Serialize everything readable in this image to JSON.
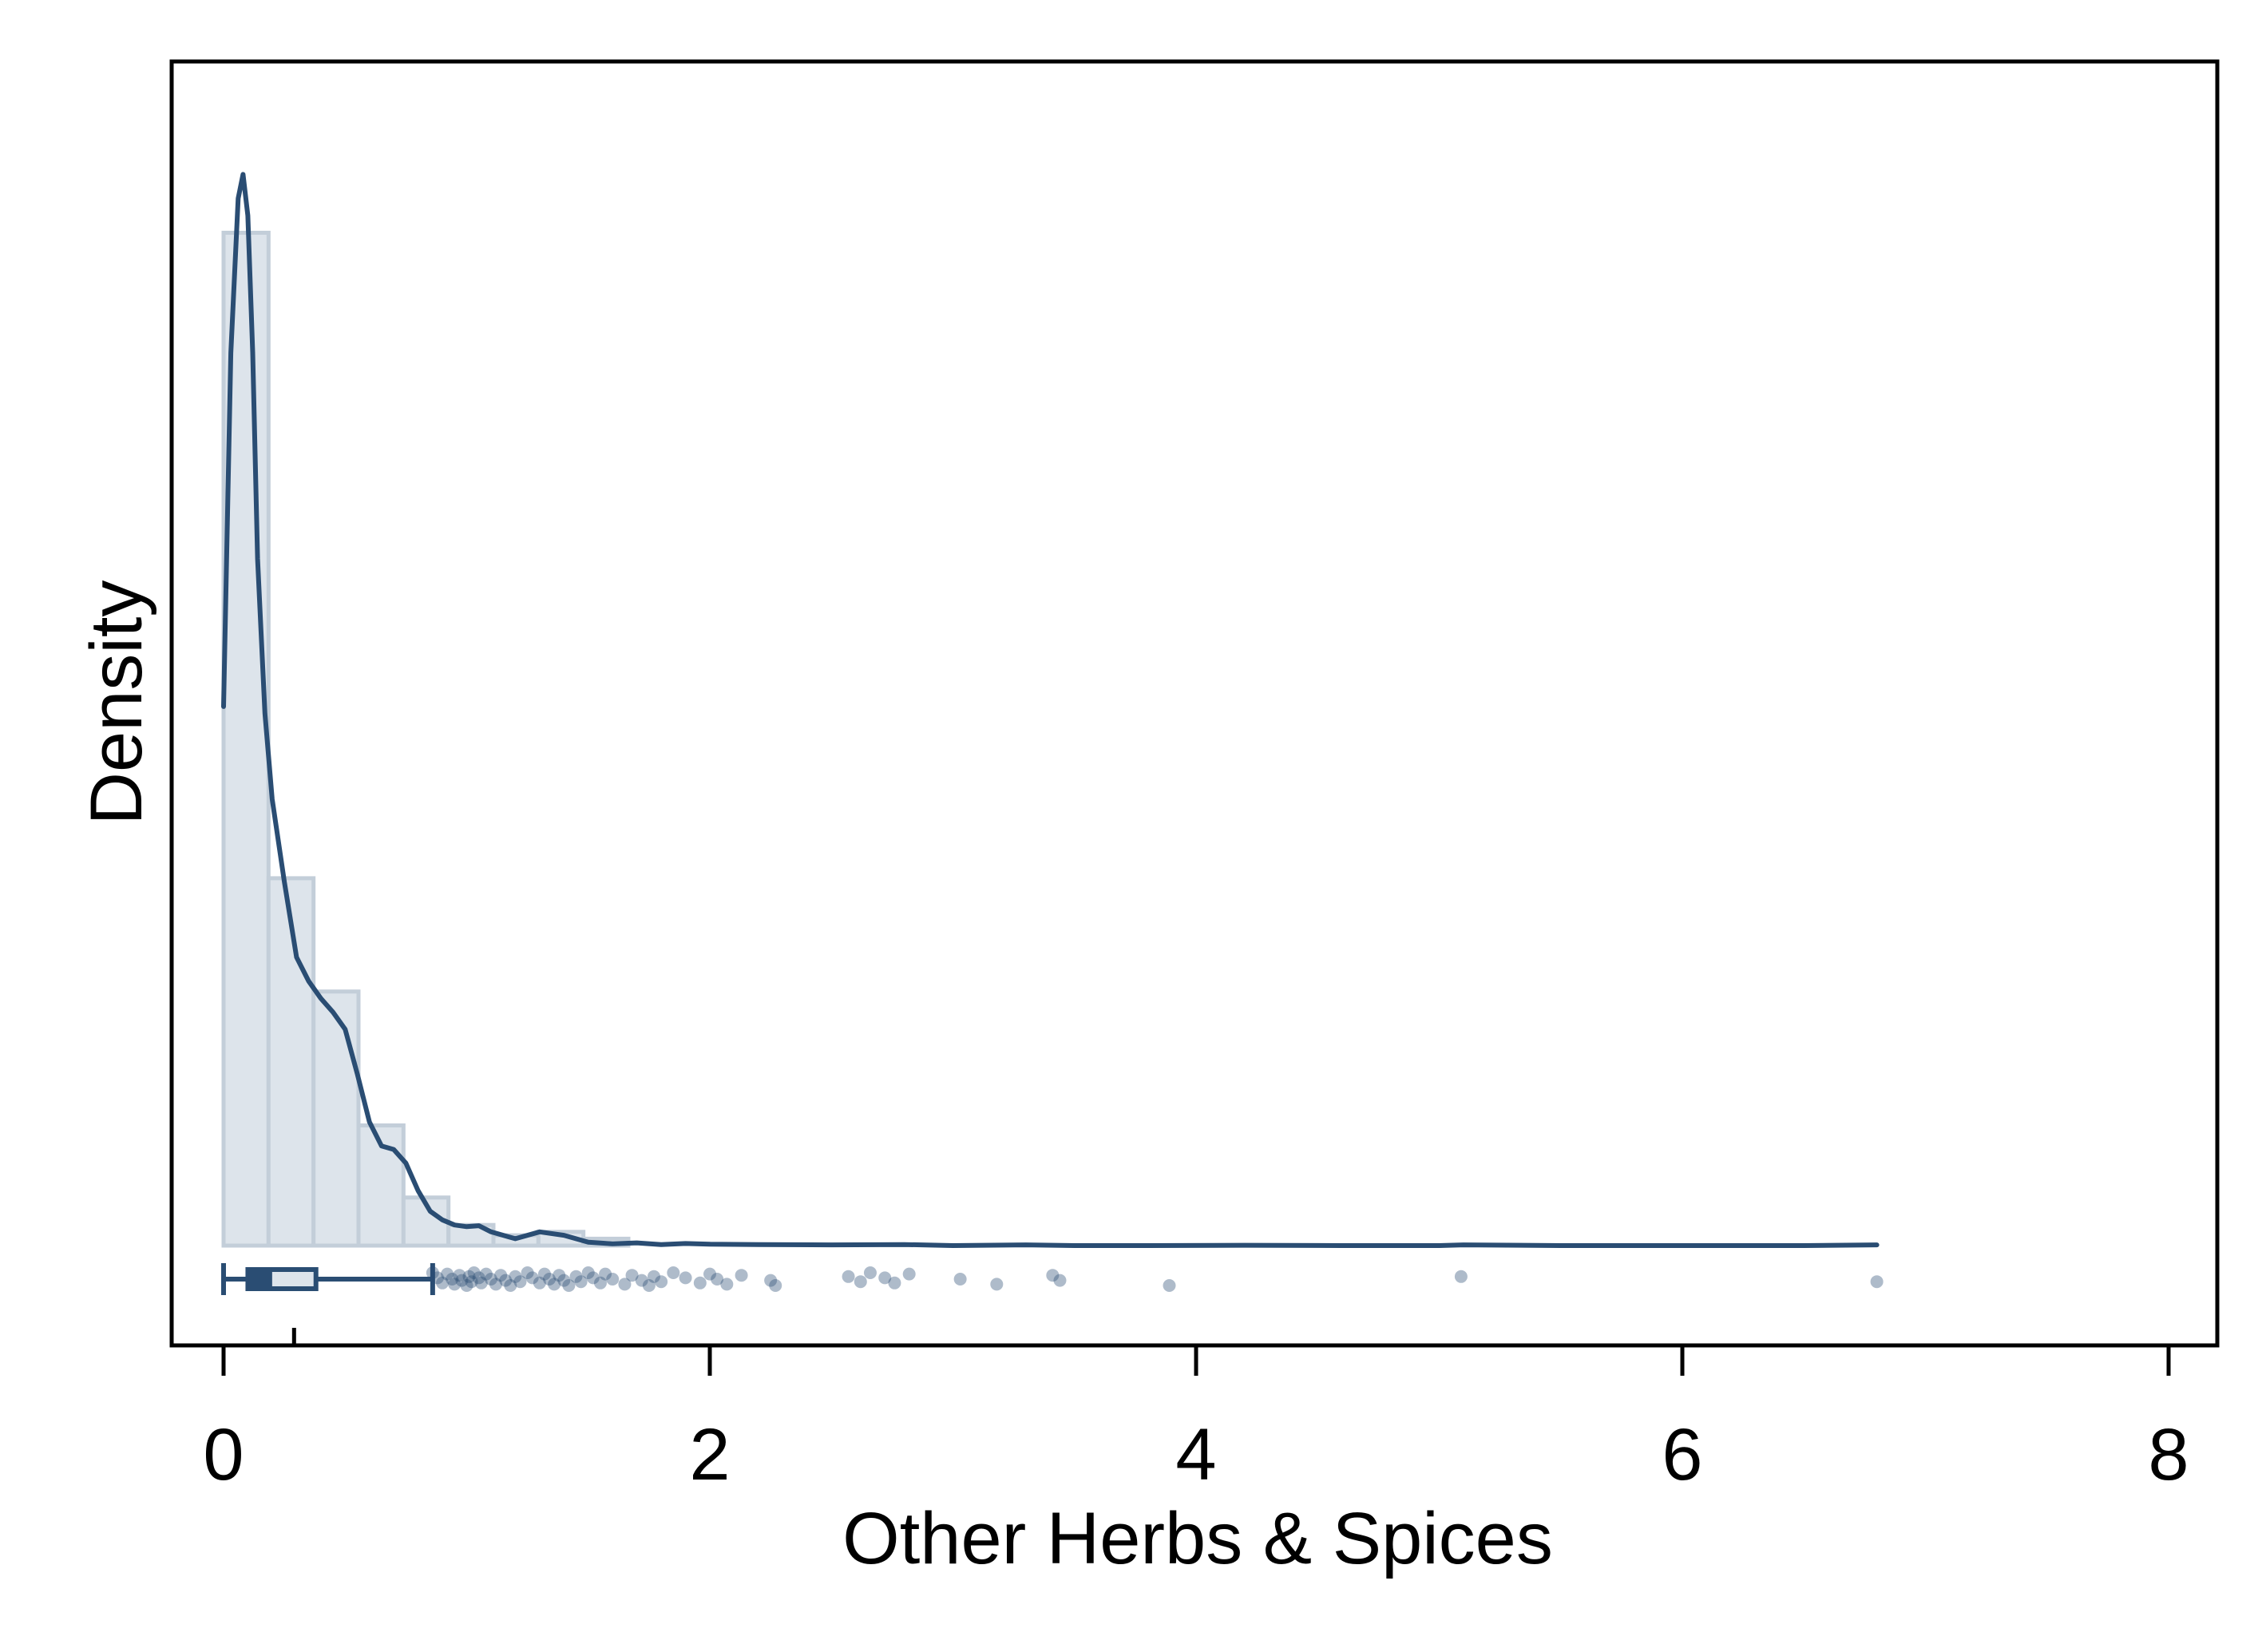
{
  "chart_data": {
    "type": "histogram",
    "title": "",
    "xlabel": "Other Herbs & Spices",
    "ylabel": "Density",
    "xlim": [
      -0.2,
      8.2
    ],
    "x_ticks": [
      "0",
      "2",
      "4",
      "6",
      "8"
    ],
    "x_tick_values": [
      0,
      2,
      4,
      6,
      8
    ],
    "y_ticks_shown": false,
    "grid": false,
    "legend": "none",
    "colors": {
      "line": "#2a4d73",
      "bar_fill": "#dde4eb",
      "bar_edge": "#c3ced9",
      "points": "#2a4d73",
      "frame": "#000000"
    },
    "histogram": {
      "bin_width": 0.185,
      "bins": [
        {
          "x0": 0.0,
          "x1": 0.185,
          "density": 2.95
        },
        {
          "x0": 0.185,
          "x1": 0.37,
          "density": 1.07
        },
        {
          "x0": 0.37,
          "x1": 0.555,
          "density": 0.74
        },
        {
          "x0": 0.555,
          "x1": 0.74,
          "density": 0.35
        },
        {
          "x0": 0.74,
          "x1": 0.925,
          "density": 0.14
        },
        {
          "x0": 0.925,
          "x1": 1.11,
          "density": 0.06
        },
        {
          "x0": 1.11,
          "x1": 1.295,
          "density": 0.03
        },
        {
          "x0": 1.295,
          "x1": 1.48,
          "density": 0.04
        },
        {
          "x0": 1.48,
          "x1": 1.665,
          "density": 0.02
        }
      ]
    },
    "kde": {
      "x": [
        0.0,
        0.03,
        0.06,
        0.08,
        0.1,
        0.12,
        0.14,
        0.17,
        0.2,
        0.25,
        0.3,
        0.35,
        0.4,
        0.45,
        0.5,
        0.55,
        0.6,
        0.65,
        0.7,
        0.75,
        0.8,
        0.85,
        0.9,
        0.95,
        1.0,
        1.05,
        1.1,
        1.2,
        1.3,
        1.4,
        1.5,
        1.6,
        1.7,
        1.8,
        1.9,
        2.0,
        2.2,
        2.5,
        2.8,
        3.0,
        3.3,
        3.5,
        3.8,
        4.2,
        4.6,
        5.0,
        5.1,
        5.5,
        6.0,
        6.5,
        6.8
      ],
      "y": [
        1.57,
        2.6,
        3.05,
        3.12,
        3.0,
        2.6,
        2.0,
        1.55,
        1.3,
        1.06,
        0.84,
        0.77,
        0.72,
        0.68,
        0.63,
        0.5,
        0.36,
        0.29,
        0.28,
        0.24,
        0.16,
        0.1,
        0.075,
        0.06,
        0.055,
        0.058,
        0.04,
        0.02,
        0.04,
        0.03,
        0.01,
        0.005,
        0.008,
        0.003,
        0.006,
        0.004,
        0.003,
        0.002,
        0.003,
        0.0,
        0.002,
        0.0,
        0.0,
        0.001,
        0.0,
        0.0,
        0.002,
        0.0,
        0.0,
        0.0,
        0.002
      ]
    },
    "boxplot": {
      "min": 0.0,
      "q1": 0.1,
      "median": 0.19,
      "q3": 0.38,
      "whisker_high": 0.86,
      "mean": 0.29
    },
    "outliers": [
      0.86,
      0.88,
      0.9,
      0.92,
      0.94,
      0.95,
      0.97,
      0.98,
      1.0,
      1.01,
      1.02,
      1.03,
      1.05,
      1.06,
      1.08,
      1.1,
      1.12,
      1.14,
      1.16,
      1.18,
      1.2,
      1.22,
      1.25,
      1.27,
      1.3,
      1.32,
      1.34,
      1.36,
      1.38,
      1.4,
      1.42,
      1.45,
      1.47,
      1.5,
      1.52,
      1.55,
      1.57,
      1.6,
      1.65,
      1.68,
      1.72,
      1.75,
      1.77,
      1.8,
      1.85,
      1.9,
      1.96,
      2.0,
      2.03,
      2.07,
      2.13,
      2.25,
      2.27,
      2.57,
      2.62,
      2.66,
      2.72,
      2.76,
      2.82,
      3.03,
      3.18,
      3.41,
      3.44,
      3.89,
      5.09,
      6.8
    ]
  }
}
